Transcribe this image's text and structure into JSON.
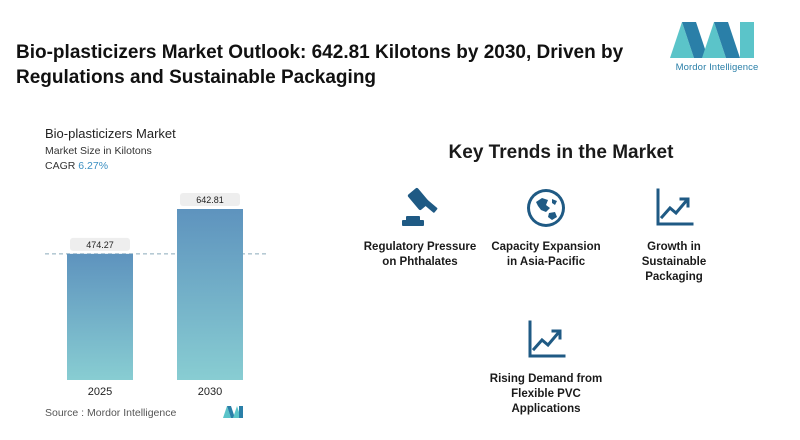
{
  "page": {
    "title": "Bio-plasticizers Market Outlook: 642.81 Kilotons by 2030, Driven by Regulations and Sustainable Packaging"
  },
  "brand": {
    "name": "Mordor Intelligence",
    "colors": {
      "teal": "#5bc4c9",
      "blue": "#2a7fa8",
      "dark_blue": "#1e5c85"
    }
  },
  "chart_data": {
    "type": "bar",
    "title": "Bio-plasticizers Market",
    "subtitle": "Market Size in Kilotons",
    "cagr_label": "CAGR",
    "cagr_value": "6.27%",
    "categories": [
      "2025",
      "2030"
    ],
    "values": [
      474.27,
      642.81
    ],
    "value_labels": [
      "474.27",
      "642.81"
    ],
    "reference_line": 474.27,
    "colors": {
      "bar_top": "#5e93be",
      "bar_bottom": "#88cdd2",
      "label_bg": "#eeeeee",
      "ref_line": "#8aaabb"
    }
  },
  "source": {
    "text": "Source :  Mordor Intelligence"
  },
  "trends": {
    "title": "Key Trends in the Market",
    "items": [
      {
        "label": "Regulatory Pressure on Phthalates",
        "icon": "gavel-icon"
      },
      {
        "label": "Capacity Expansion in Asia-Pacific",
        "icon": "globe-icon"
      },
      {
        "label": "Growth in Sustainable Packaging",
        "icon": "line-chart-icon"
      },
      {
        "label": "Rising Demand from Flexible PVC Applications",
        "icon": "line-chart-icon"
      }
    ],
    "icon_color": "#1f5a84"
  }
}
